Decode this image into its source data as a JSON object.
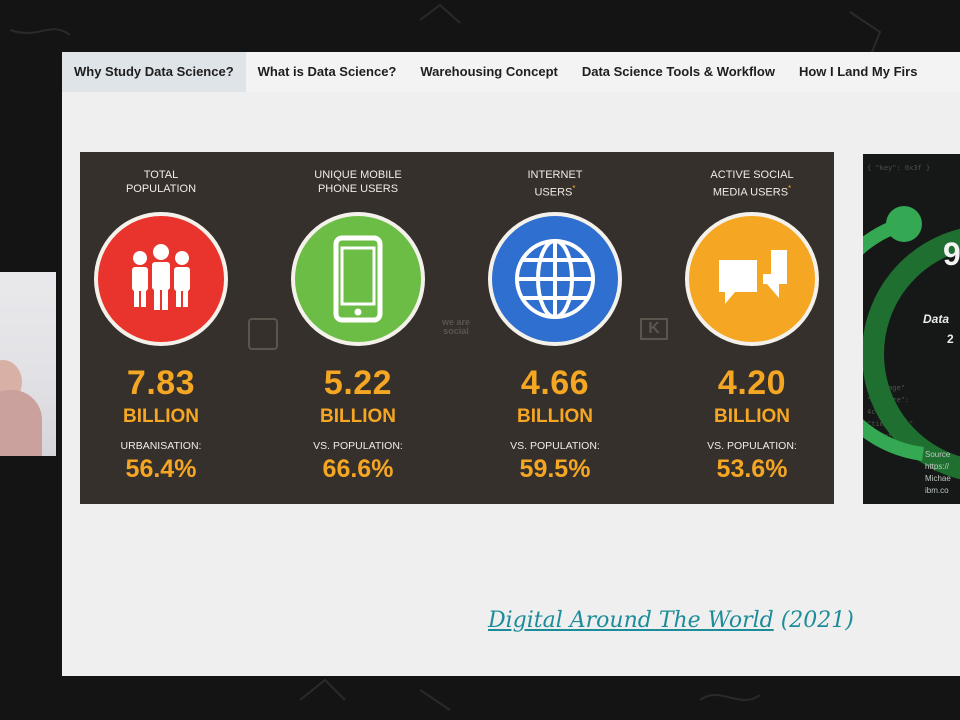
{
  "tabs": [
    {
      "label": "Why Study Data Science?",
      "active": true
    },
    {
      "label": "What is Data Science?",
      "active": false
    },
    {
      "label": "Warehousing Concept",
      "active": false
    },
    {
      "label": "Data Science Tools & Workflow",
      "active": false
    },
    {
      "label": "How I Land My Firs",
      "active": false
    }
  ],
  "infographic": {
    "logos": [
      "we are social",
      "K"
    ],
    "stats": [
      {
        "label_line1": "TOTAL",
        "label_line2": "POPULATION",
        "asterisk": "",
        "value": "7.83",
        "unit": "BILLION",
        "sub_label": "URBANISATION:",
        "sub_value": "56.4%",
        "color": "#e8342c",
        "icon": "people-icon"
      },
      {
        "label_line1": "UNIQUE MOBILE",
        "label_line2": "PHONE USERS",
        "asterisk": "",
        "value": "5.22",
        "unit": "BILLION",
        "sub_label": "vs. POPULATION:",
        "sub_value": "66.6%",
        "color": "#6cbd45",
        "icon": "mobile-phone-icon"
      },
      {
        "label_line1": "INTERNET",
        "label_line2": "USERS",
        "asterisk": "*",
        "value": "4.66",
        "unit": "BILLION",
        "sub_label": "vs. POPULATION:",
        "sub_value": "59.5%",
        "color": "#2f6fcf",
        "icon": "globe-icon"
      },
      {
        "label_line1": "ACTIVE SOCIAL",
        "label_line2": "MEDIA USERS",
        "asterisk": "*",
        "value": "4.20",
        "unit": "BILLION",
        "sub_label": "vs. POPULATION:",
        "sub_value": "53.6%",
        "color": "#f5a623",
        "icon": "chat-bubbles-icon"
      }
    ]
  },
  "side_image": {
    "big_text": "9",
    "line1": "Data",
    "line2": "2",
    "source_lines": [
      "Source",
      "https://",
      "Michae",
      "ibm.co"
    ]
  },
  "caption": {
    "link_text": "Digital Around The World",
    "year_text": "(2021)"
  },
  "colors": {
    "accent_orange": "#f5a623",
    "panel_bg": "#35302b",
    "link": "#1d8c9a"
  }
}
